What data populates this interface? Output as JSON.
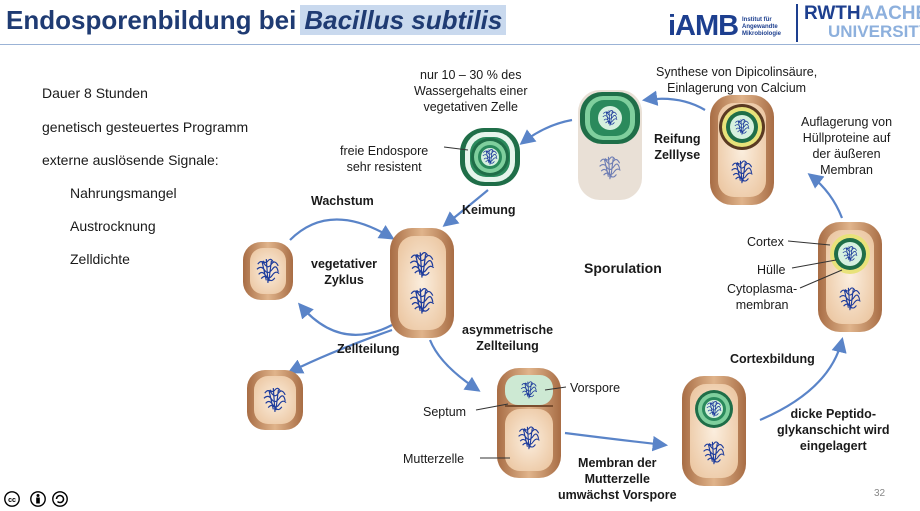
{
  "header": {
    "title_plain": "Endosporenbildung bei",
    "title_italic": "Bacillus subtilis",
    "logo_iamb_text": "iAMB",
    "logo_iamb_subtitle": "Institut für\nAngewandte\nMikrobiologie",
    "logo_rwth_line1_bold": "RWTH",
    "logo_rwth_line1_light": "AACHEN",
    "logo_rwth_line2": "UNIVERSITY"
  },
  "left_list": {
    "duration": "Dauer 8 Stunden",
    "program": "genetisch gesteuertes Programm",
    "signals_heading": "externe auslösende Signale:",
    "signals": [
      "Nahrungsmangel",
      "Austrocknung",
      "Zelldichte"
    ]
  },
  "diagram": {
    "water_content": [
      "nur 10 – 30 % des",
      "Wassergehalts einer",
      "vegetativen Zelle"
    ],
    "free_spore": [
      "freie Endospore",
      "sehr resistent"
    ],
    "germination": "Keimung",
    "growth": "Wachstum",
    "vegetative_cycle": [
      "vegetativer",
      "Zyklus"
    ],
    "cell_division": "Zellteilung",
    "asym_division": [
      "asymmetrische",
      "Zellteilung"
    ],
    "sporulation": "Sporulation",
    "forespore": "Vorspore",
    "septum": "Septum",
    "mother_cell": "Mutterzelle",
    "engulfment": [
      "Membran der",
      "Mutterzelle",
      "umwächst Vorspore"
    ],
    "cortex_formation": "Cortexbildung",
    "peptidoglycan": [
      "dicke Peptido-",
      "glykanschicht wird",
      "eingelagert"
    ],
    "cortex": "Cortex",
    "coat": "Hülle",
    "cytoplasm_membrane": [
      "Cytoplasma-",
      "membran"
    ],
    "coat_proteins": [
      "Auflagerung von",
      "Hüllproteine auf",
      "der äußeren",
      "Membran"
    ],
    "dipicolinic": [
      "Synthese von Dipicolinsäure,",
      "Einlagerung von Calcium"
    ],
    "maturation": [
      "Reifung",
      "Zelllyse"
    ]
  },
  "footer": {
    "page_number": "32",
    "license_icons": [
      "cc-icon",
      "by-icon",
      "sa-icon"
    ]
  },
  "colors": {
    "title_blue": "#1f3b73",
    "arrow_blue": "#5a84c8",
    "cell_outer": "#c8946a",
    "cell_inner": "#f3dcc4",
    "spore_green": "#2a8a5c",
    "dna_blue": "#1e3c9c"
  }
}
